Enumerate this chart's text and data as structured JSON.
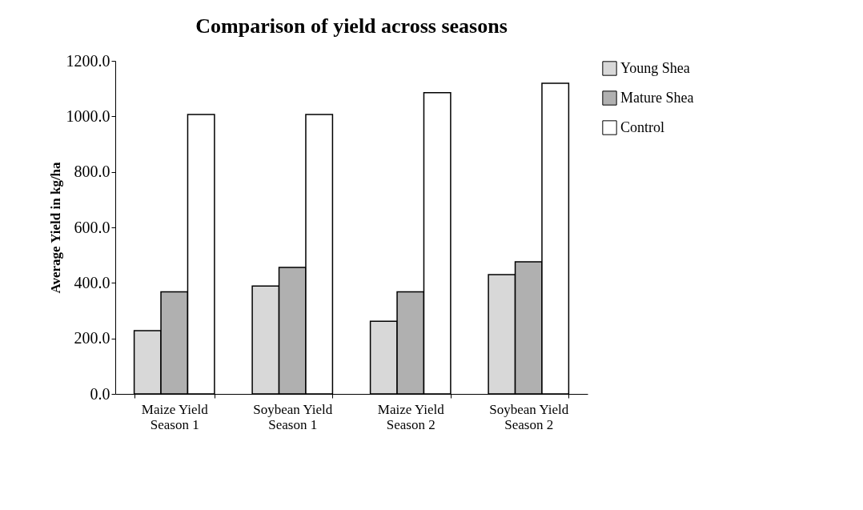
{
  "chart_data": {
    "type": "bar",
    "title": "Comparison of yield across seasons",
    "ylabel": "Average  Yield  in kg/ha",
    "categories": [
      "Maize Yield\nSeason 1",
      "Soybean Yield\nSeason 1",
      "Maize Yield\nSeason 2",
      "Soybean Yield\nSeason 2"
    ],
    "series": [
      {
        "name": "Young Shea",
        "color": "#d8d8d8",
        "values": [
          228,
          389,
          262,
          430
        ]
      },
      {
        "name": "Mature Shea",
        "color": "#b0b0b0",
        "values": [
          368,
          456,
          368,
          476
        ]
      },
      {
        "name": "Control",
        "color": "#ffffff",
        "values": [
          1007,
          1007,
          1085,
          1119
        ]
      }
    ],
    "ylim": [
      0,
      1200
    ],
    "yticks": [
      {
        "value": 0,
        "label": "0.0"
      },
      {
        "value": 200,
        "label": "200.0"
      },
      {
        "value": 400,
        "label": "400.0"
      },
      {
        "value": 600,
        "label": "600.0"
      },
      {
        "value": 800,
        "label": "800.0"
      },
      {
        "value": 1000,
        "label": "1000.0"
      },
      {
        "value": 1200,
        "label": "1200.0"
      }
    ],
    "grid": false,
    "legend": "right"
  }
}
